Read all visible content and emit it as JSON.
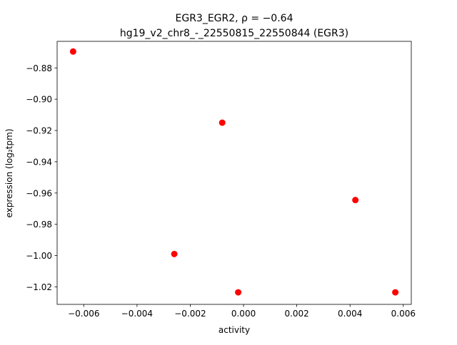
{
  "chart_data": {
    "type": "scatter",
    "title_line1": "EGR3_EGR2, ρ = −0.64",
    "title_line2": "hg19_v2_chr8_-_22550815_22550844 (EGR3)",
    "xlabel": "activity",
    "ylabel": "expression (log₂tpm)",
    "xlim": [
      -0.007,
      0.0063
    ],
    "ylim": [
      -1.0312,
      -0.863
    ],
    "xticks": [
      {
        "value": -0.006,
        "label": "−0.006"
      },
      {
        "value": -0.004,
        "label": "−0.004"
      },
      {
        "value": -0.002,
        "label": "−0.002"
      },
      {
        "value": 0.0,
        "label": "0.000"
      },
      {
        "value": 0.002,
        "label": "0.002"
      },
      {
        "value": 0.004,
        "label": "0.004"
      },
      {
        "value": 0.006,
        "label": "0.006"
      }
    ],
    "yticks": [
      {
        "value": -0.88,
        "label": "−0.88"
      },
      {
        "value": -0.9,
        "label": "−0.90"
      },
      {
        "value": -0.92,
        "label": "−0.92"
      },
      {
        "value": -0.94,
        "label": "−0.94"
      },
      {
        "value": -0.96,
        "label": "−0.96"
      },
      {
        "value": -0.98,
        "label": "−0.98"
      },
      {
        "value": -1.0,
        "label": "−1.00"
      },
      {
        "value": -1.02,
        "label": "−1.02"
      }
    ],
    "grid": false,
    "legend": "none",
    "marker_color": "#ff0000",
    "series": [
      {
        "points": [
          {
            "x": -0.0064,
            "y": -0.8695
          },
          {
            "x": -0.0008,
            "y": -0.915
          },
          {
            "x": -0.0026,
            "y": -0.999
          },
          {
            "x": -0.0002,
            "y": -1.0235
          },
          {
            "x": 0.0042,
            "y": -0.9645
          },
          {
            "x": 0.0057,
            "y": -1.0235
          }
        ]
      }
    ]
  }
}
